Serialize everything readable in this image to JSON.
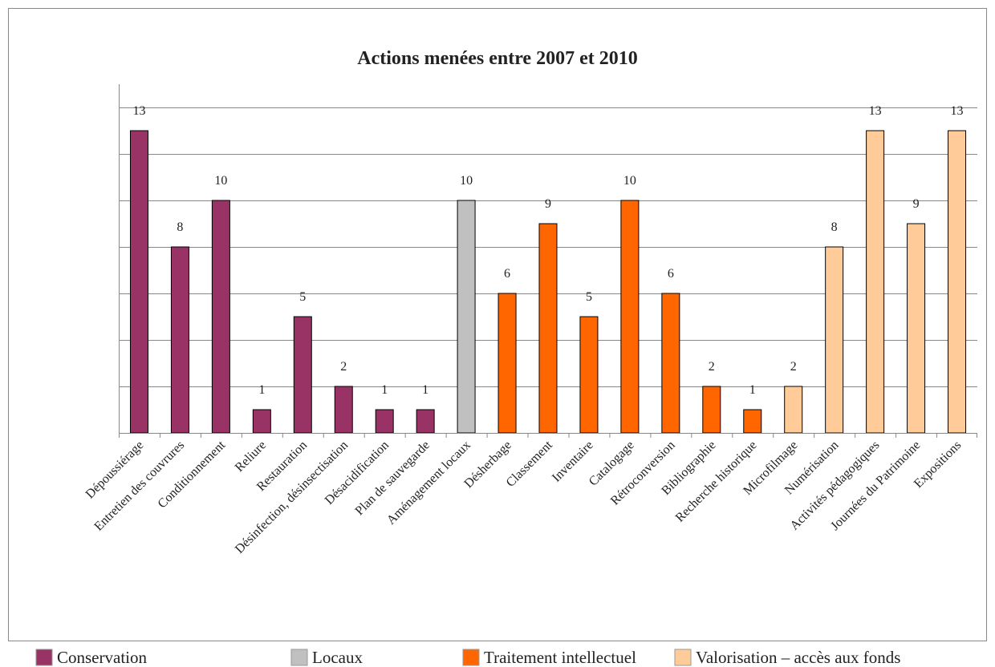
{
  "chart_data": {
    "type": "bar",
    "title": "Actions menées entre 2007 et 2010",
    "categories": [
      "Dépoussiérage",
      "Entretien des couvrures",
      "Conditionnement",
      "Reliure",
      "Restauration",
      "Désinfection, désinsectisation",
      "Désacidification",
      "Plan de sauvegarde",
      "Aménagement locaux",
      "Désherbage",
      "Classement",
      "Inventaire",
      "Catalogage",
      "Rétroconversion",
      "Bibliographie",
      "Recherche historique",
      "Microfilmage",
      "Numérisation",
      "Activités pédagogiques",
      "Journées du Patrimoine",
      "Expositions"
    ],
    "series": [
      {
        "name": "Conservation",
        "color": "#993366",
        "values": [
          13,
          8,
          10,
          1,
          5,
          2,
          1,
          1,
          null,
          null,
          null,
          null,
          null,
          null,
          null,
          null,
          null,
          null,
          null,
          null,
          null
        ]
      },
      {
        "name": "Locaux",
        "color": "#c0c0c0",
        "values": [
          null,
          null,
          null,
          null,
          null,
          null,
          null,
          null,
          10,
          null,
          null,
          null,
          null,
          null,
          null,
          null,
          null,
          null,
          null,
          null,
          null
        ]
      },
      {
        "name": "Traitement intellectuel",
        "color": "#ff6600",
        "values": [
          null,
          null,
          null,
          null,
          null,
          null,
          null,
          null,
          null,
          6,
          9,
          5,
          10,
          6,
          2,
          1,
          null,
          null,
          null,
          null,
          null
        ]
      },
      {
        "name": "Valorisation – accès aux fonds",
        "color": "#ffcc99",
        "values": [
          null,
          null,
          null,
          null,
          null,
          null,
          null,
          null,
          null,
          null,
          null,
          null,
          null,
          null,
          null,
          null,
          2,
          8,
          13,
          9,
          13
        ]
      }
    ],
    "ylim": [
      0,
      15
    ],
    "yticks": [
      0,
      2,
      4,
      6,
      8,
      10,
      12,
      14
    ],
    "grid": true,
    "legend": "bottom"
  }
}
